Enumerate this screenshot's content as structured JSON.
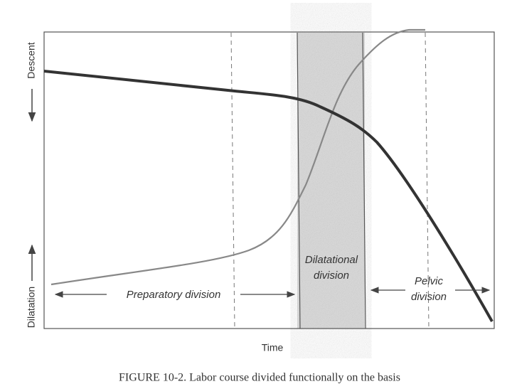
{
  "axis_labels": {
    "top": "Descent",
    "bottom": "Dilatation",
    "x": "Time"
  },
  "regions": [
    {
      "lines": [
        "Preparatory division"
      ]
    },
    {
      "lines": [
        "Dilatational",
        "division"
      ]
    },
    {
      "lines": [
        "Pelvic",
        "division"
      ]
    }
  ],
  "caption": "FIGURE 10-2. Labor course divided functionally on the basis"
}
